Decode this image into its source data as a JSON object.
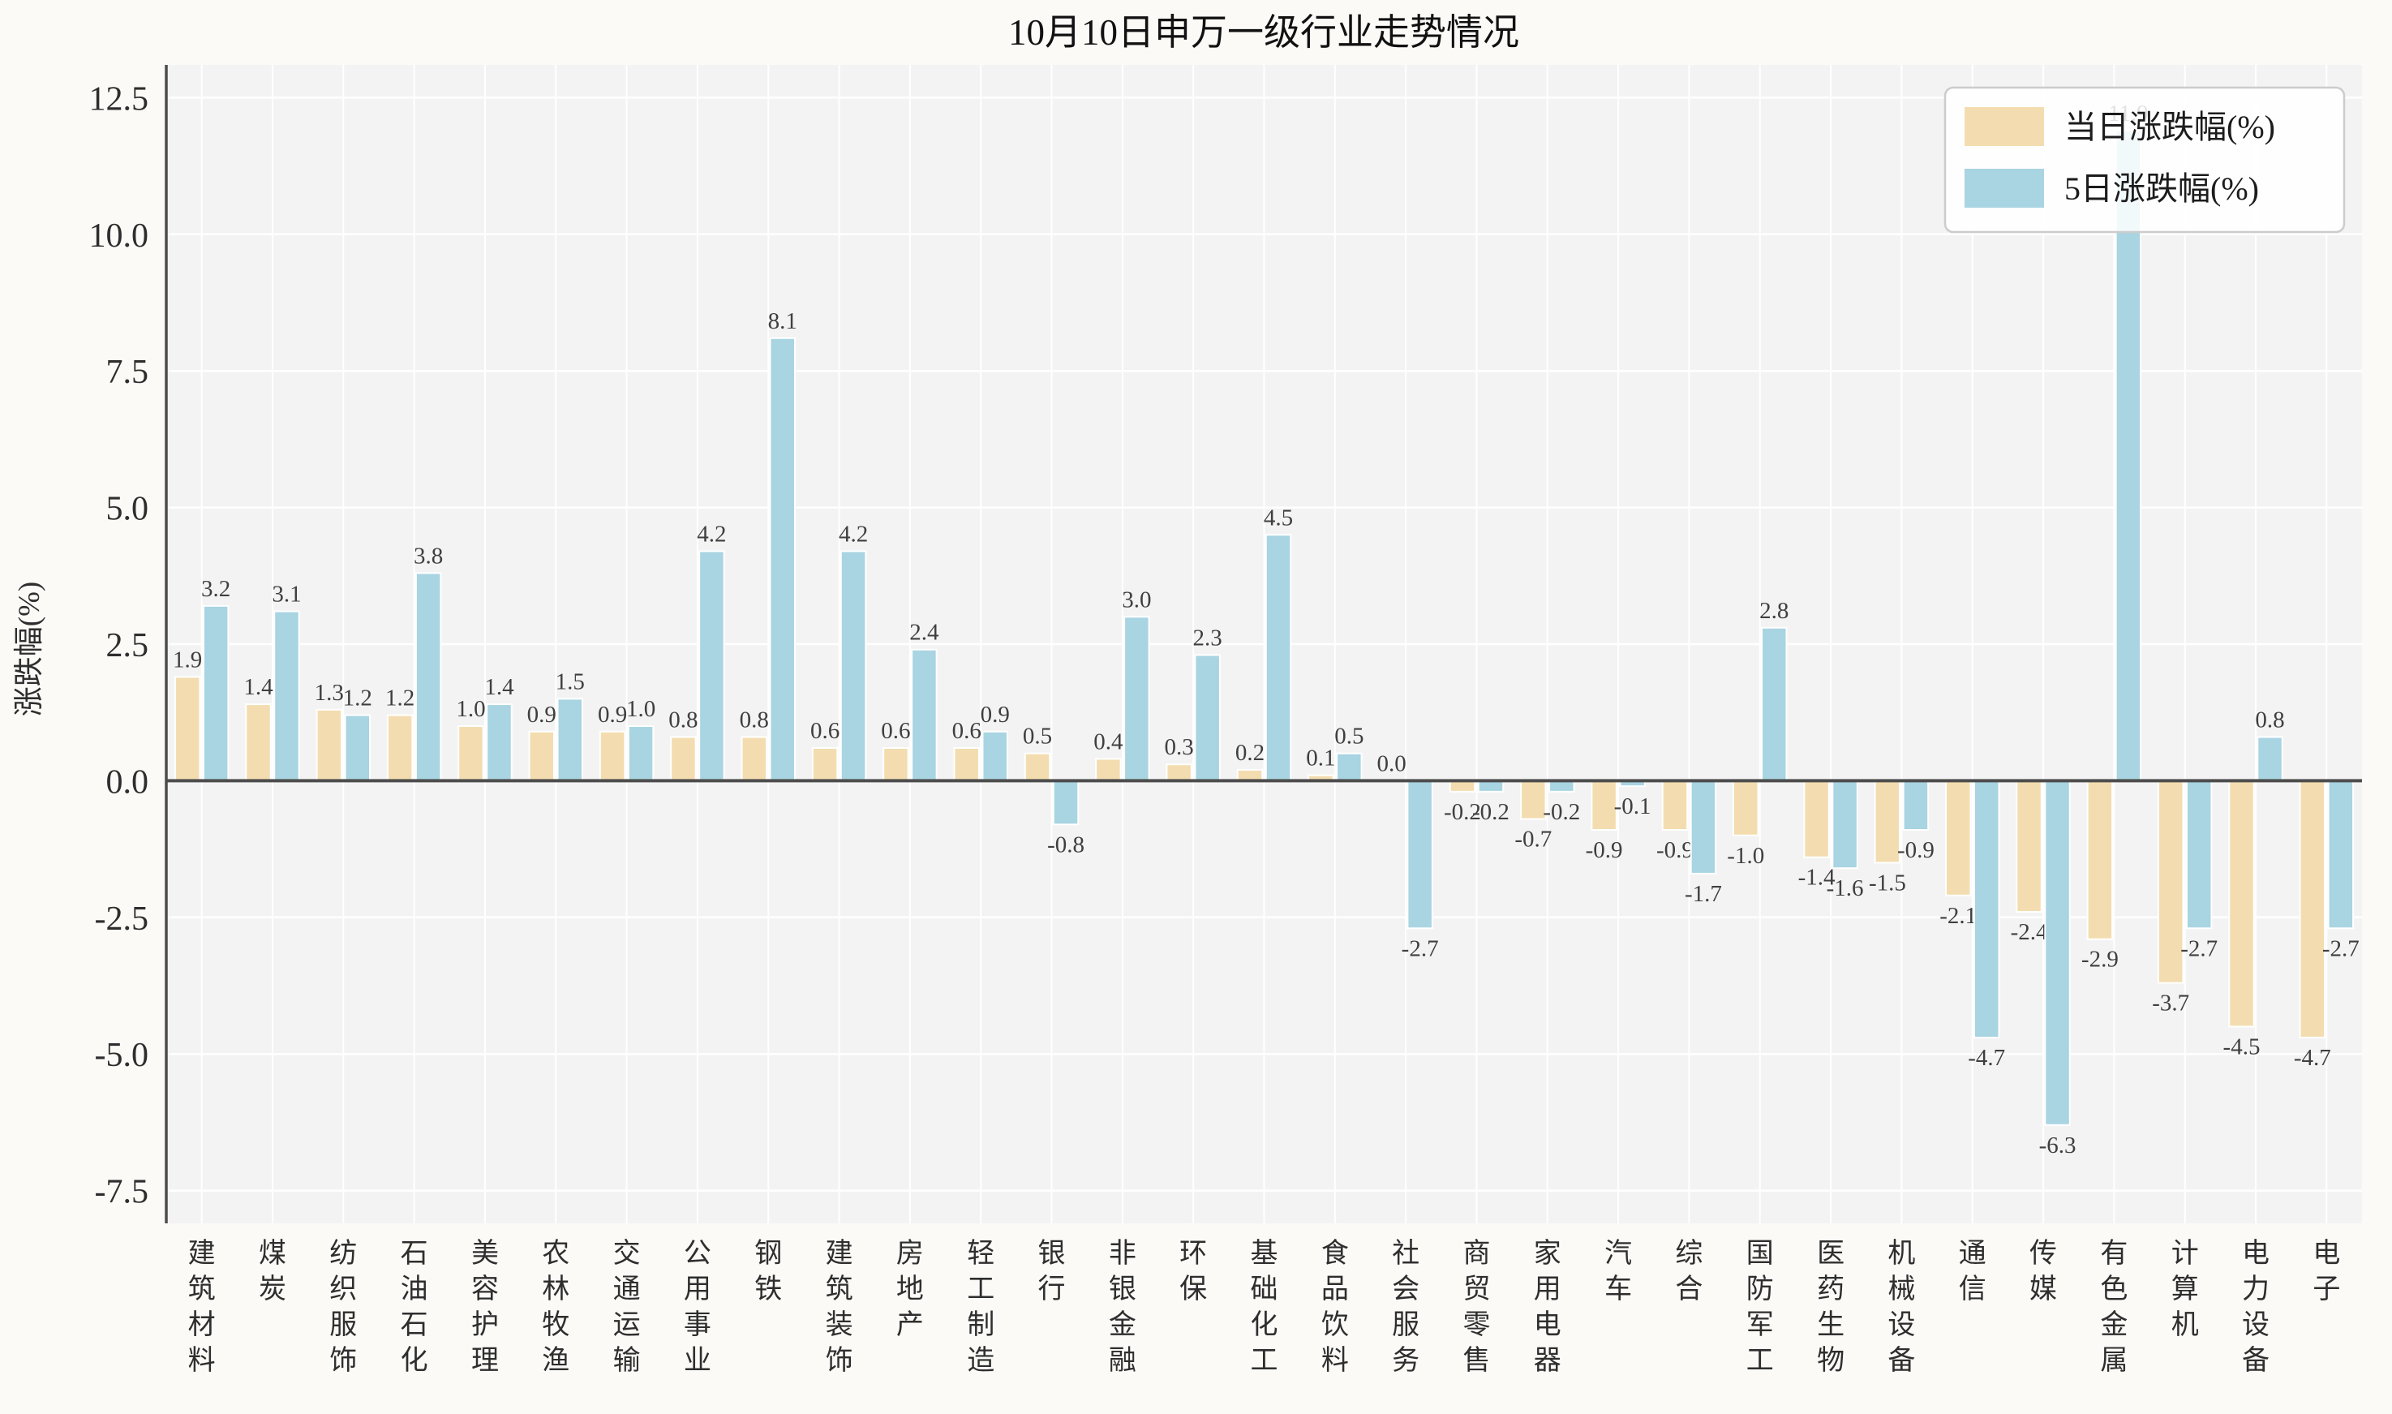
{
  "chart_data": {
    "type": "bar",
    "title": "10月10日申万一级行业走势情况",
    "ylabel": "涨跌幅(%)",
    "categories": [
      "建筑材料",
      "煤炭",
      "纺织服饰",
      "石油石化",
      "美容护理",
      "农林牧渔",
      "交通运输",
      "公用事业",
      "钢铁",
      "建筑装饰",
      "房地产",
      "轻工制造",
      "银行",
      "非银金融",
      "环保",
      "基础化工",
      "食品饮料",
      "社会服务",
      "商贸零售",
      "家用电器",
      "汽车",
      "综合",
      "国防军工",
      "医药生物",
      "机械设备",
      "通信",
      "传媒",
      "有色金属",
      "计算机",
      "电力设备",
      "电子"
    ],
    "series": [
      {
        "name": "当日涨跌幅(%)",
        "color": "#f3ddb0",
        "values": [
          1.9,
          1.4,
          1.3,
          1.2,
          1.0,
          0.9,
          0.9,
          0.8,
          0.8,
          0.6,
          0.6,
          0.6,
          0.5,
          0.4,
          0.3,
          0.2,
          0.1,
          0.0,
          -0.2,
          -0.7,
          -0.9,
          -0.9,
          -1.0,
          -1.4,
          -1.5,
          -2.1,
          -2.4,
          -2.9,
          -3.7,
          -4.5,
          -4.7
        ]
      },
      {
        "name": "5日涨跌幅(%)",
        "color": "#a9d4e2",
        "values": [
          3.2,
          3.1,
          1.2,
          3.8,
          1.4,
          1.5,
          1.0,
          4.2,
          8.1,
          4.2,
          2.4,
          0.9,
          -0.8,
          3.0,
          2.3,
          4.5,
          0.5,
          -2.7,
          -0.2,
          -0.2,
          -0.1,
          -1.7,
          2.8,
          -1.6,
          -0.9,
          -4.7,
          -6.3,
          11.9,
          -2.7,
          0.8,
          -2.7
        ]
      }
    ],
    "yticks": [
      -7.5,
      -5.0,
      -2.5,
      0.0,
      2.5,
      5.0,
      7.5,
      10.0,
      12.5
    ],
    "ylim": [
      -8.1,
      13.1
    ],
    "grid": true,
    "legend_position": "upper right",
    "value_labels": true
  },
  "style": {
    "figure_background": "#fbfaf7",
    "plot_background": "#f3f3f3",
    "grid_color": "#ffffff",
    "axis_color": "#4d4d4d",
    "bar_edge_color": "#ffffff",
    "title_color": "#111111",
    "tick_color": "#2e2e2e",
    "value_label_color": "#3f3f3f",
    "legend_border_color": "#cccccc",
    "legend_background": "#ffffff"
  }
}
